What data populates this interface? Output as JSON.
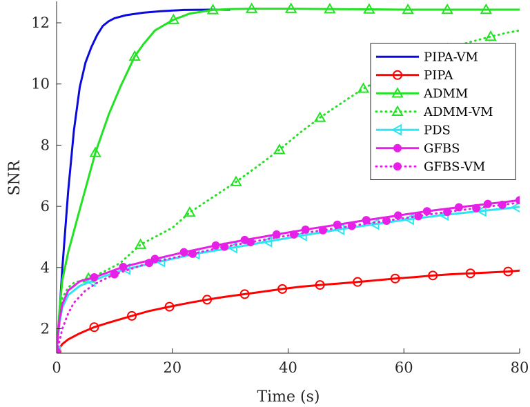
{
  "chart_data": {
    "type": "line",
    "xlabel": "Time (s)",
    "ylabel": "SNR",
    "xlim": [
      0,
      80
    ],
    "ylim": [
      1.2,
      12.7
    ],
    "xticks": [
      0,
      20,
      40,
      60,
      80
    ],
    "yticks": [
      2,
      4,
      6,
      8,
      10,
      12
    ],
    "grid": false,
    "legend_position": "top-right",
    "series": [
      {
        "name": "PIPA-VM",
        "color": "#0a0adc",
        "style": "solid",
        "marker": "none",
        "x": [
          0,
          0.5,
          1,
          2,
          3,
          4,
          5,
          6,
          7,
          8,
          9,
          10,
          12,
          15,
          18,
          22,
          27,
          30
        ],
        "y": [
          1.25,
          2.5,
          4.0,
          6.5,
          8.5,
          9.9,
          10.7,
          11.2,
          11.6,
          11.9,
          12.05,
          12.15,
          12.25,
          12.33,
          12.38,
          12.42,
          12.43,
          12.43
        ]
      },
      {
        "name": "PIPA",
        "color": "#ff0000",
        "style": "solid",
        "marker": "circle",
        "markers_x": [
          0,
          6.5,
          13,
          19.5,
          26,
          32.5,
          39,
          45.5,
          52,
          58.5,
          65,
          71.5,
          78
        ],
        "x": [
          0,
          1,
          2,
          4,
          6.5,
          9,
          13,
          16,
          19.5,
          23,
          26,
          29,
          32.5,
          36,
          39,
          42,
          45.5,
          49,
          52,
          55,
          58.5,
          62,
          65,
          68,
          71.5,
          75,
          78,
          80
        ],
        "y": [
          1.25,
          1.5,
          1.65,
          1.85,
          2.05,
          2.2,
          2.42,
          2.58,
          2.72,
          2.85,
          2.95,
          3.04,
          3.13,
          3.22,
          3.3,
          3.37,
          3.43,
          3.48,
          3.53,
          3.58,
          3.64,
          3.69,
          3.74,
          3.78,
          3.81,
          3.84,
          3.87,
          3.9
        ]
      },
      {
        "name": "ADMM",
        "color": "#22e222",
        "style": "solid",
        "marker": "triangle-up",
        "markers_x": [
          0,
          6.7,
          13.5,
          20.2,
          27,
          33.7,
          40.5,
          47.2,
          54,
          60.7,
          67.5,
          74.2
        ],
        "x": [
          0,
          0.5,
          1,
          2,
          4,
          6.7,
          9,
          11,
          13.5,
          15,
          17,
          20.2,
          23,
          27,
          30,
          33.7,
          40.5,
          47.2,
          54,
          60.7,
          67.5,
          74.2,
          80
        ],
        "y": [
          1.25,
          2.6,
          3.6,
          4.5,
          5.9,
          7.75,
          9.0,
          9.9,
          10.9,
          11.3,
          11.75,
          12.1,
          12.3,
          12.42,
          12.45,
          12.46,
          12.46,
          12.45,
          12.44,
          12.43,
          12.43,
          12.43,
          12.43
        ]
      },
      {
        "name": "ADMM-VM",
        "color": "#22e222",
        "style": "dotted",
        "marker": "triangle-up",
        "markers_x": [
          0,
          5.5,
          14.5,
          23,
          31,
          38.5,
          45.5,
          53,
          60.5,
          67.5,
          75
        ],
        "x": [
          0,
          0.5,
          1,
          2,
          3,
          5.5,
          8,
          11,
          14.5,
          17,
          20,
          23,
          27,
          31,
          35,
          38.5,
          42,
          45.5,
          49,
          53,
          57,
          60.5,
          64,
          67.5,
          71,
          75,
          78,
          80
        ],
        "y": [
          1.25,
          2.3,
          3.0,
          3.35,
          3.5,
          3.65,
          3.85,
          4.15,
          4.75,
          5.0,
          5.3,
          5.8,
          6.3,
          6.8,
          7.35,
          7.85,
          8.4,
          8.9,
          9.35,
          9.85,
          10.25,
          10.6,
          10.9,
          11.15,
          11.35,
          11.55,
          11.68,
          11.75
        ]
      },
      {
        "name": "PDS",
        "color": "#2ee6f2",
        "style": "solid",
        "marker": "triangle-left",
        "markers_x": [
          0,
          6,
          12,
          18,
          24,
          30.5,
          36.5,
          42.5,
          49,
          55,
          61,
          67,
          73.5,
          79.5
        ],
        "x": [
          0,
          0.5,
          1,
          2,
          4,
          6,
          8,
          12,
          18,
          24,
          30.5,
          36.5,
          42.5,
          49,
          55,
          61,
          67,
          73.5,
          80
        ],
        "y": [
          1.25,
          2.2,
          2.7,
          3.1,
          3.4,
          3.55,
          3.7,
          3.95,
          4.2,
          4.45,
          4.65,
          4.85,
          5.05,
          5.25,
          5.42,
          5.58,
          5.72,
          5.85,
          5.98
        ]
      },
      {
        "name": "GFBS",
        "color": "#e620e6",
        "style": "solid",
        "marker": "circle-filled",
        "markers_x": [
          0,
          6.5,
          11.5,
          17,
          22,
          27.5,
          32.5,
          38,
          43,
          48.5,
          53.5,
          59,
          64,
          69.5,
          74.5,
          80
        ],
        "x": [
          0,
          0.5,
          1,
          2,
          4,
          6.5,
          9,
          11.5,
          17,
          22,
          27.5,
          32.5,
          38,
          43,
          48.5,
          53.5,
          59,
          64,
          69.5,
          74.5,
          80
        ],
        "y": [
          1.25,
          2.3,
          2.8,
          3.25,
          3.55,
          3.68,
          3.85,
          4.02,
          4.28,
          4.5,
          4.72,
          4.9,
          5.08,
          5.24,
          5.4,
          5.55,
          5.7,
          5.84,
          5.97,
          6.08,
          6.2
        ]
      },
      {
        "name": "GFBS-VM",
        "color": "#e620e6",
        "style": "dotted",
        "marker": "circle-filled",
        "markers_x": [
          0,
          10,
          16,
          23.5,
          29,
          33.5,
          41,
          46,
          51,
          57,
          62.5,
          67.5,
          72.5,
          77
        ],
        "x": [
          0,
          0.5,
          1,
          2,
          3,
          5,
          7,
          10,
          16,
          23.5,
          29,
          33.5,
          41,
          46,
          51,
          57,
          62.5,
          67.5,
          72.5,
          77,
          80
        ],
        "y": [
          1.25,
          1.6,
          2.0,
          2.5,
          2.85,
          3.25,
          3.5,
          3.78,
          4.15,
          4.45,
          4.68,
          4.83,
          5.08,
          5.22,
          5.36,
          5.53,
          5.68,
          5.82,
          5.94,
          6.05,
          6.12
        ]
      }
    ]
  }
}
